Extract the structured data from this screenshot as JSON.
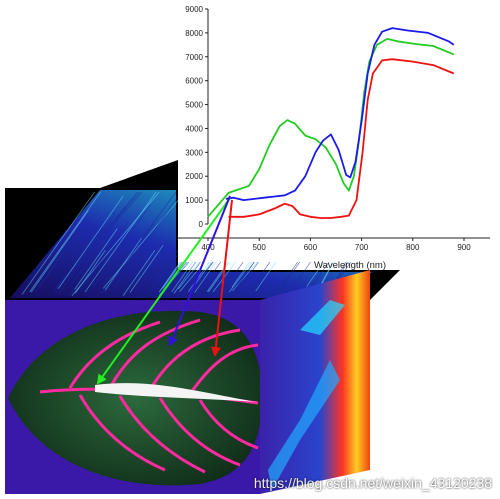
{
  "chart_data": {
    "type": "line",
    "xlabel": "Wavelength (nm)",
    "ylabel": "",
    "xlim": [
      400,
      900
    ],
    "ylim": [
      0,
      9000
    ],
    "x_ticks": [
      400,
      500,
      600,
      700,
      800,
      900
    ],
    "y_ticks": [
      0,
      1000,
      2000,
      3000,
      4000,
      5000,
      6000,
      7000,
      8000,
      9000
    ],
    "grid": false,
    "series": [
      {
        "color": "#22cc22",
        "points": [
          [
            400,
            300
          ],
          [
            420,
            800
          ],
          [
            440,
            1300
          ],
          [
            460,
            1450
          ],
          [
            480,
            1600
          ],
          [
            500,
            2300
          ],
          [
            520,
            3300
          ],
          [
            540,
            4100
          ],
          [
            555,
            4350
          ],
          [
            570,
            4200
          ],
          [
            590,
            3700
          ],
          [
            610,
            3550
          ],
          [
            630,
            3200
          ],
          [
            650,
            2500
          ],
          [
            665,
            1700
          ],
          [
            675,
            1400
          ],
          [
            685,
            2000
          ],
          [
            695,
            3500
          ],
          [
            705,
            5500
          ],
          [
            715,
            6800
          ],
          [
            730,
            7500
          ],
          [
            750,
            7750
          ],
          [
            770,
            7650
          ],
          [
            800,
            7550
          ],
          [
            840,
            7450
          ],
          [
            880,
            7100
          ]
        ]
      },
      {
        "color": "#1a1aee",
        "points": [
          [
            435,
            1050
          ],
          [
            450,
            1100
          ],
          [
            470,
            1000
          ],
          [
            490,
            1050
          ],
          [
            510,
            1100
          ],
          [
            530,
            1150
          ],
          [
            550,
            1200
          ],
          [
            570,
            1400
          ],
          [
            590,
            2000
          ],
          [
            610,
            3000
          ],
          [
            625,
            3500
          ],
          [
            640,
            3750
          ],
          [
            655,
            3100
          ],
          [
            670,
            2050
          ],
          [
            678,
            1950
          ],
          [
            688,
            2600
          ],
          [
            700,
            4300
          ],
          [
            712,
            6300
          ],
          [
            725,
            7500
          ],
          [
            740,
            8050
          ],
          [
            760,
            8200
          ],
          [
            790,
            8100
          ],
          [
            830,
            8000
          ],
          [
            870,
            7650
          ],
          [
            880,
            7500
          ]
        ]
      },
      {
        "color": "#ee1111",
        "points": [
          [
            440,
            300
          ],
          [
            470,
            300
          ],
          [
            500,
            400
          ],
          [
            530,
            650
          ],
          [
            550,
            850
          ],
          [
            565,
            750
          ],
          [
            580,
            400
          ],
          [
            600,
            300
          ],
          [
            620,
            250
          ],
          [
            640,
            250
          ],
          [
            660,
            300
          ],
          [
            675,
            350
          ],
          [
            690,
            1000
          ],
          [
            702,
            3000
          ],
          [
            712,
            5200
          ],
          [
            722,
            6300
          ],
          [
            740,
            6850
          ],
          [
            760,
            6900
          ],
          [
            800,
            6800
          ],
          [
            840,
            6650
          ],
          [
            880,
            6300
          ]
        ]
      }
    ]
  },
  "annotation_arrows": [
    {
      "color": "#22ee22",
      "label": "green-arrow"
    },
    {
      "color": "#3311dd",
      "label": "blue-arrow"
    },
    {
      "color": "#ee1111",
      "label": "red-arrow"
    }
  ],
  "watermark": "https://blog.csdn.net/weixin_43120238"
}
